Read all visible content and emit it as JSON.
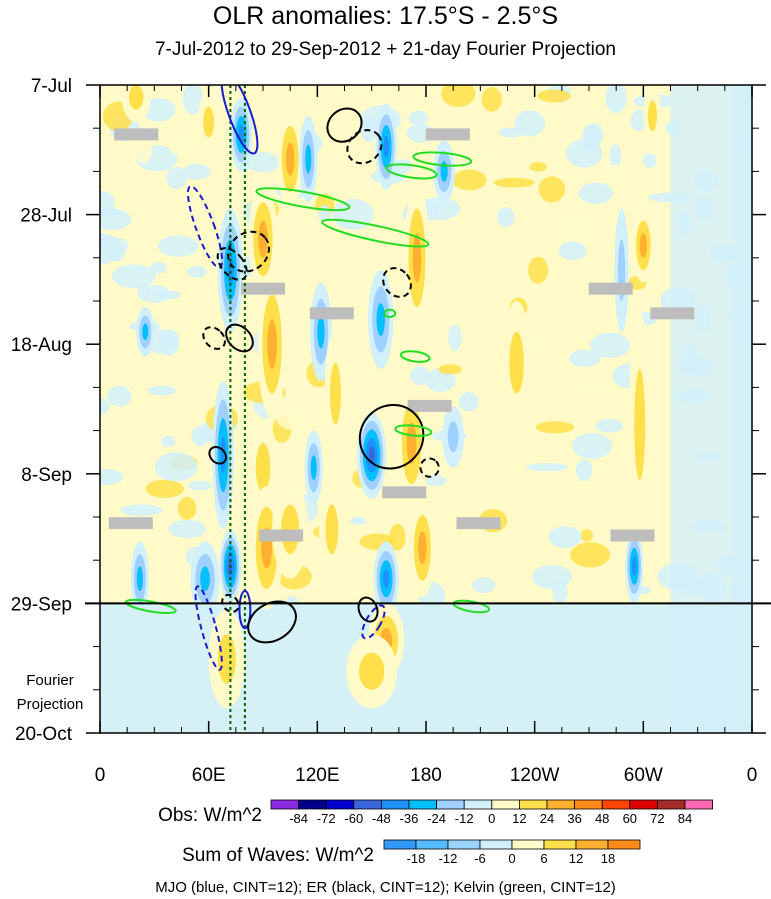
{
  "chart_data": {
    "type": "heatmap",
    "title": "OLR anomalies: 17.5°S - 2.5°S",
    "subtitle": "7-Jul-2012 to 29-Sep-2012 + 21-day Fourier Projection",
    "x_tick_labels": [
      "0",
      "60E",
      "120E",
      "180",
      "120W",
      "60W",
      "0"
    ],
    "x_ticks_lon": [
      0,
      60,
      120,
      180,
      240,
      300,
      360
    ],
    "y_tick_labels": [
      "7-Jul",
      "28-Jul",
      "18-Aug",
      "8-Sep",
      "29-Sep",
      "20-Oct"
    ],
    "y_ticks_day": [
      0,
      21,
      42,
      63,
      84,
      105
    ],
    "fourier_projection_label": [
      "Fourier",
      "Projection"
    ],
    "projection_start_day": 84,
    "obs_colorbar": {
      "label": "Obs: W/m^2",
      "levels": [
        "-84",
        "-72",
        "-60",
        "-48",
        "-36",
        "-24",
        "-12",
        "0",
        "12",
        "24",
        "36",
        "48",
        "60",
        "72",
        "84"
      ],
      "colors": [
        "#8a2be2",
        "#00008b",
        "#0000cd",
        "#3a66dc",
        "#1e90ff",
        "#00bfff",
        "#9fd0ff",
        "#d2f0fa",
        "#fffac8",
        "#ffe04a",
        "#ffb030",
        "#ff8c1a",
        "#ff4500",
        "#e00000",
        "#a52a2a",
        "#ff69b4"
      ]
    },
    "waves_colorbar": {
      "label": "Sum of Waves: W/m^2",
      "levels": [
        "-18",
        "-12",
        "-6",
        "0",
        "6",
        "12",
        "18"
      ],
      "colors": [
        "#3399ff",
        "#55bbff",
        "#99d5ff",
        "#d2f0fa",
        "#fffac8",
        "#ffe04a",
        "#ffb030",
        "#ff8c1a"
      ]
    },
    "footer": "MJO (blue, CINT=12); ER (black, CINT=12); Kelvin (green, CINT=12)",
    "wave_colors": {
      "MJO": "#1a1acd",
      "ER": "#000000",
      "Kelvin": "#22dd22"
    },
    "reference_lines_lon": [
      72,
      80
    ],
    "reference_line_color": "#006400",
    "obs_features": [
      {
        "lon": 78,
        "day": 8,
        "dlon": 6,
        "dday": 6,
        "v": -40
      },
      {
        "lon": 72,
        "day": 30,
        "dlon": 7,
        "dday": 10,
        "v": -45
      },
      {
        "lon": 68,
        "day": 60,
        "dlon": 6,
        "dday": 12,
        "v": -40
      },
      {
        "lon": 72,
        "day": 78,
        "dlon": 6,
        "dday": 6,
        "v": -55
      },
      {
        "lon": 25,
        "day": 40,
        "dlon": 5,
        "dday": 4,
        "v": -30
      },
      {
        "lon": 22,
        "day": 80,
        "dlon": 5,
        "dday": 6,
        "v": -30
      },
      {
        "lon": 58,
        "day": 80,
        "dlon": 8,
        "dday": 6,
        "v": -35
      },
      {
        "lon": 105,
        "day": 12,
        "dlon": 7,
        "dday": 8,
        "v": 25
      },
      {
        "lon": 90,
        "day": 25,
        "dlon": 8,
        "dday": 9,
        "v": 35
      },
      {
        "lon": 95,
        "day": 42,
        "dlon": 8,
        "dday": 12,
        "v": 25
      },
      {
        "lon": 90,
        "day": 62,
        "dlon": 8,
        "dday": 8,
        "v": 20
      },
      {
        "lon": 92,
        "day": 75,
        "dlon": 9,
        "dday": 10,
        "v": 25
      },
      {
        "lon": 105,
        "day": 72,
        "dlon": 10,
        "dday": 8,
        "v": 18
      },
      {
        "lon": 115,
        "day": 12,
        "dlon": 5,
        "dday": 7,
        "v": -25
      },
      {
        "lon": 122,
        "day": 40,
        "dlon": 6,
        "dday": 8,
        "v": -30
      },
      {
        "lon": 118,
        "day": 62,
        "dlon": 5,
        "dday": 6,
        "v": -25
      },
      {
        "lon": 130,
        "day": 50,
        "dlon": 6,
        "dday": 10,
        "v": 22
      },
      {
        "lon": 128,
        "day": 72,
        "dlon": 7,
        "dday": 8,
        "v": 22
      },
      {
        "lon": 158,
        "day": 10,
        "dlon": 6,
        "dday": 7,
        "v": -40
      },
      {
        "lon": 155,
        "day": 38,
        "dlon": 7,
        "dday": 8,
        "v": -35
      },
      {
        "lon": 150,
        "day": 60,
        "dlon": 8,
        "dday": 7,
        "v": -55
      },
      {
        "lon": 158,
        "day": 80,
        "dlon": 7,
        "dday": 6,
        "v": -45
      },
      {
        "lon": 175,
        "day": 28,
        "dlon": 7,
        "dday": 12,
        "v": 30
      },
      {
        "lon": 172,
        "day": 58,
        "dlon": 8,
        "dday": 10,
        "v": 35
      },
      {
        "lon": 178,
        "day": 75,
        "dlon": 7,
        "dday": 8,
        "v": 28
      },
      {
        "lon": 158,
        "day": 90,
        "dlon": 10,
        "dday": 6,
        "v": 24
      },
      {
        "lon": 190,
        "day": 14,
        "dlon": 6,
        "dday": 5,
        "v": -25
      },
      {
        "lon": 195,
        "day": 57,
        "dlon": 6,
        "dday": 5,
        "v": -20
      },
      {
        "lon": 230,
        "day": 45,
        "dlon": 8,
        "dday": 10,
        "v": 14
      },
      {
        "lon": 300,
        "day": 26,
        "dlon": 6,
        "dday": 6,
        "v": 35
      },
      {
        "lon": 298,
        "day": 55,
        "dlon": 6,
        "dday": 18,
        "v": 22
      },
      {
        "lon": 295,
        "day": 78,
        "dlon": 5,
        "dday": 6,
        "v": -40
      },
      {
        "lon": 305,
        "day": 5,
        "dlon": 5,
        "dday": 5,
        "v": 18
      },
      {
        "lon": 288,
        "day": 30,
        "dlon": 4,
        "dday": 10,
        "v": -18
      },
      {
        "lon": 20,
        "day": 2,
        "dlon": 8,
        "dday": 4,
        "v": 14
      },
      {
        "lon": 60,
        "day": 6,
        "dlon": 6,
        "dday": 5,
        "v": 18
      },
      {
        "lon": 70,
        "day": 93,
        "dlon": 10,
        "dday": 8,
        "v": 14
      },
      {
        "lon": 150,
        "day": 95,
        "dlon": 14,
        "dday": 6,
        "v": 14
      }
    ],
    "mask_boxes": [
      {
        "lon": 20,
        "day": 8
      },
      {
        "lon": 192,
        "day": 8
      },
      {
        "lon": 90,
        "day": 33
      },
      {
        "lon": 128,
        "day": 37
      },
      {
        "lon": 282,
        "day": 33
      },
      {
        "lon": 316,
        "day": 37
      },
      {
        "lon": 182,
        "day": 52
      },
      {
        "lon": 168,
        "day": 66
      },
      {
        "lon": 17,
        "day": 71
      },
      {
        "lon": 209,
        "day": 71
      },
      {
        "lon": 100,
        "day": 73
      },
      {
        "lon": 294,
        "day": 73
      }
    ],
    "mjo_contours": [
      {
        "lon": 77,
        "day": 4.5,
        "rlon": 6,
        "rday": 7,
        "rot": -20,
        "dash": false
      },
      {
        "lon": 58,
        "day": 23,
        "rlon": 5,
        "rday": 7,
        "rot": -20,
        "dash": true
      },
      {
        "lon": 60,
        "day": 88,
        "rlon": 4,
        "rday": 7,
        "rot": -15,
        "dash": true
      },
      {
        "lon": 80,
        "day": 85,
        "rlon": 3,
        "rday": 3,
        "rot": 0,
        "dash": false
      },
      {
        "lon": 151,
        "day": 87,
        "rlon": 4,
        "rday": 3,
        "rot": 30,
        "dash": true
      }
    ],
    "er_contours": [
      {
        "lon": 82,
        "day": 27,
        "rlon": 12,
        "rday": 3,
        "rot": -40,
        "dash": true
      },
      {
        "lon": 73,
        "day": 29,
        "rlon": 6,
        "rday": 3,
        "rot": -40,
        "dash": true
      },
      {
        "lon": 63,
        "day": 41,
        "rlon": 5,
        "rday": 2,
        "rot": -45,
        "dash": true
      },
      {
        "lon": 77,
        "day": 41,
        "rlon": 6,
        "rday": 2.5,
        "rot": -45,
        "dash": false
      },
      {
        "lon": 65,
        "day": 60,
        "rlon": 4,
        "rday": 1.5,
        "rot": -45,
        "dash": false
      },
      {
        "lon": 135,
        "day": 6.5,
        "rlon": 10,
        "rday": 2.5,
        "rot": -40,
        "dash": false
      },
      {
        "lon": 146,
        "day": 10,
        "rlon": 10,
        "rday": 2.5,
        "rot": -40,
        "dash": true
      },
      {
        "lon": 164,
        "day": 32,
        "rlon": 7,
        "rday": 2.5,
        "rot": -40,
        "dash": true
      },
      {
        "lon": 161,
        "day": 57,
        "rlon": 18,
        "rday": 5,
        "rot": -45,
        "dash": false
      },
      {
        "lon": 182,
        "day": 62,
        "rlon": 5,
        "rday": 1.5,
        "rot": -45,
        "dash": true
      },
      {
        "lon": 95,
        "day": 87,
        "rlon": 14,
        "rday": 3,
        "rot": -30,
        "dash": false
      },
      {
        "lon": 72,
        "day": 84,
        "rlon": 4,
        "rday": 1.5,
        "rot": -40,
        "dash": true
      },
      {
        "lon": 148,
        "day": 85,
        "rlon": 5,
        "rday": 2,
        "rot": -20,
        "dash": false
      }
    ],
    "kelvin_contours": [
      {
        "lon": 112,
        "day": 18.5,
        "rlon": 26,
        "rday": 1.2,
        "rot": 10
      },
      {
        "lon": 152,
        "day": 24,
        "rlon": 30,
        "rday": 1.2,
        "rot": 12
      },
      {
        "lon": 189,
        "day": 12,
        "rlon": 16,
        "rday": 1,
        "rot": 5
      },
      {
        "lon": 172,
        "day": 14,
        "rlon": 14,
        "rday": 1,
        "rot": 8
      },
      {
        "lon": 174,
        "day": 44,
        "rlon": 8,
        "rday": 0.8,
        "rot": 8
      },
      {
        "lon": 173,
        "day": 56,
        "rlon": 10,
        "rday": 0.8,
        "rot": 6
      },
      {
        "lon": 160,
        "day": 37,
        "rlon": 3,
        "rday": 0.6,
        "rot": 0
      },
      {
        "lon": 28,
        "day": 84.5,
        "rlon": 14,
        "rday": 0.8,
        "rot": 10
      },
      {
        "lon": 205,
        "day": 84.5,
        "rlon": 10,
        "rday": 0.8,
        "rot": 10
      }
    ]
  }
}
